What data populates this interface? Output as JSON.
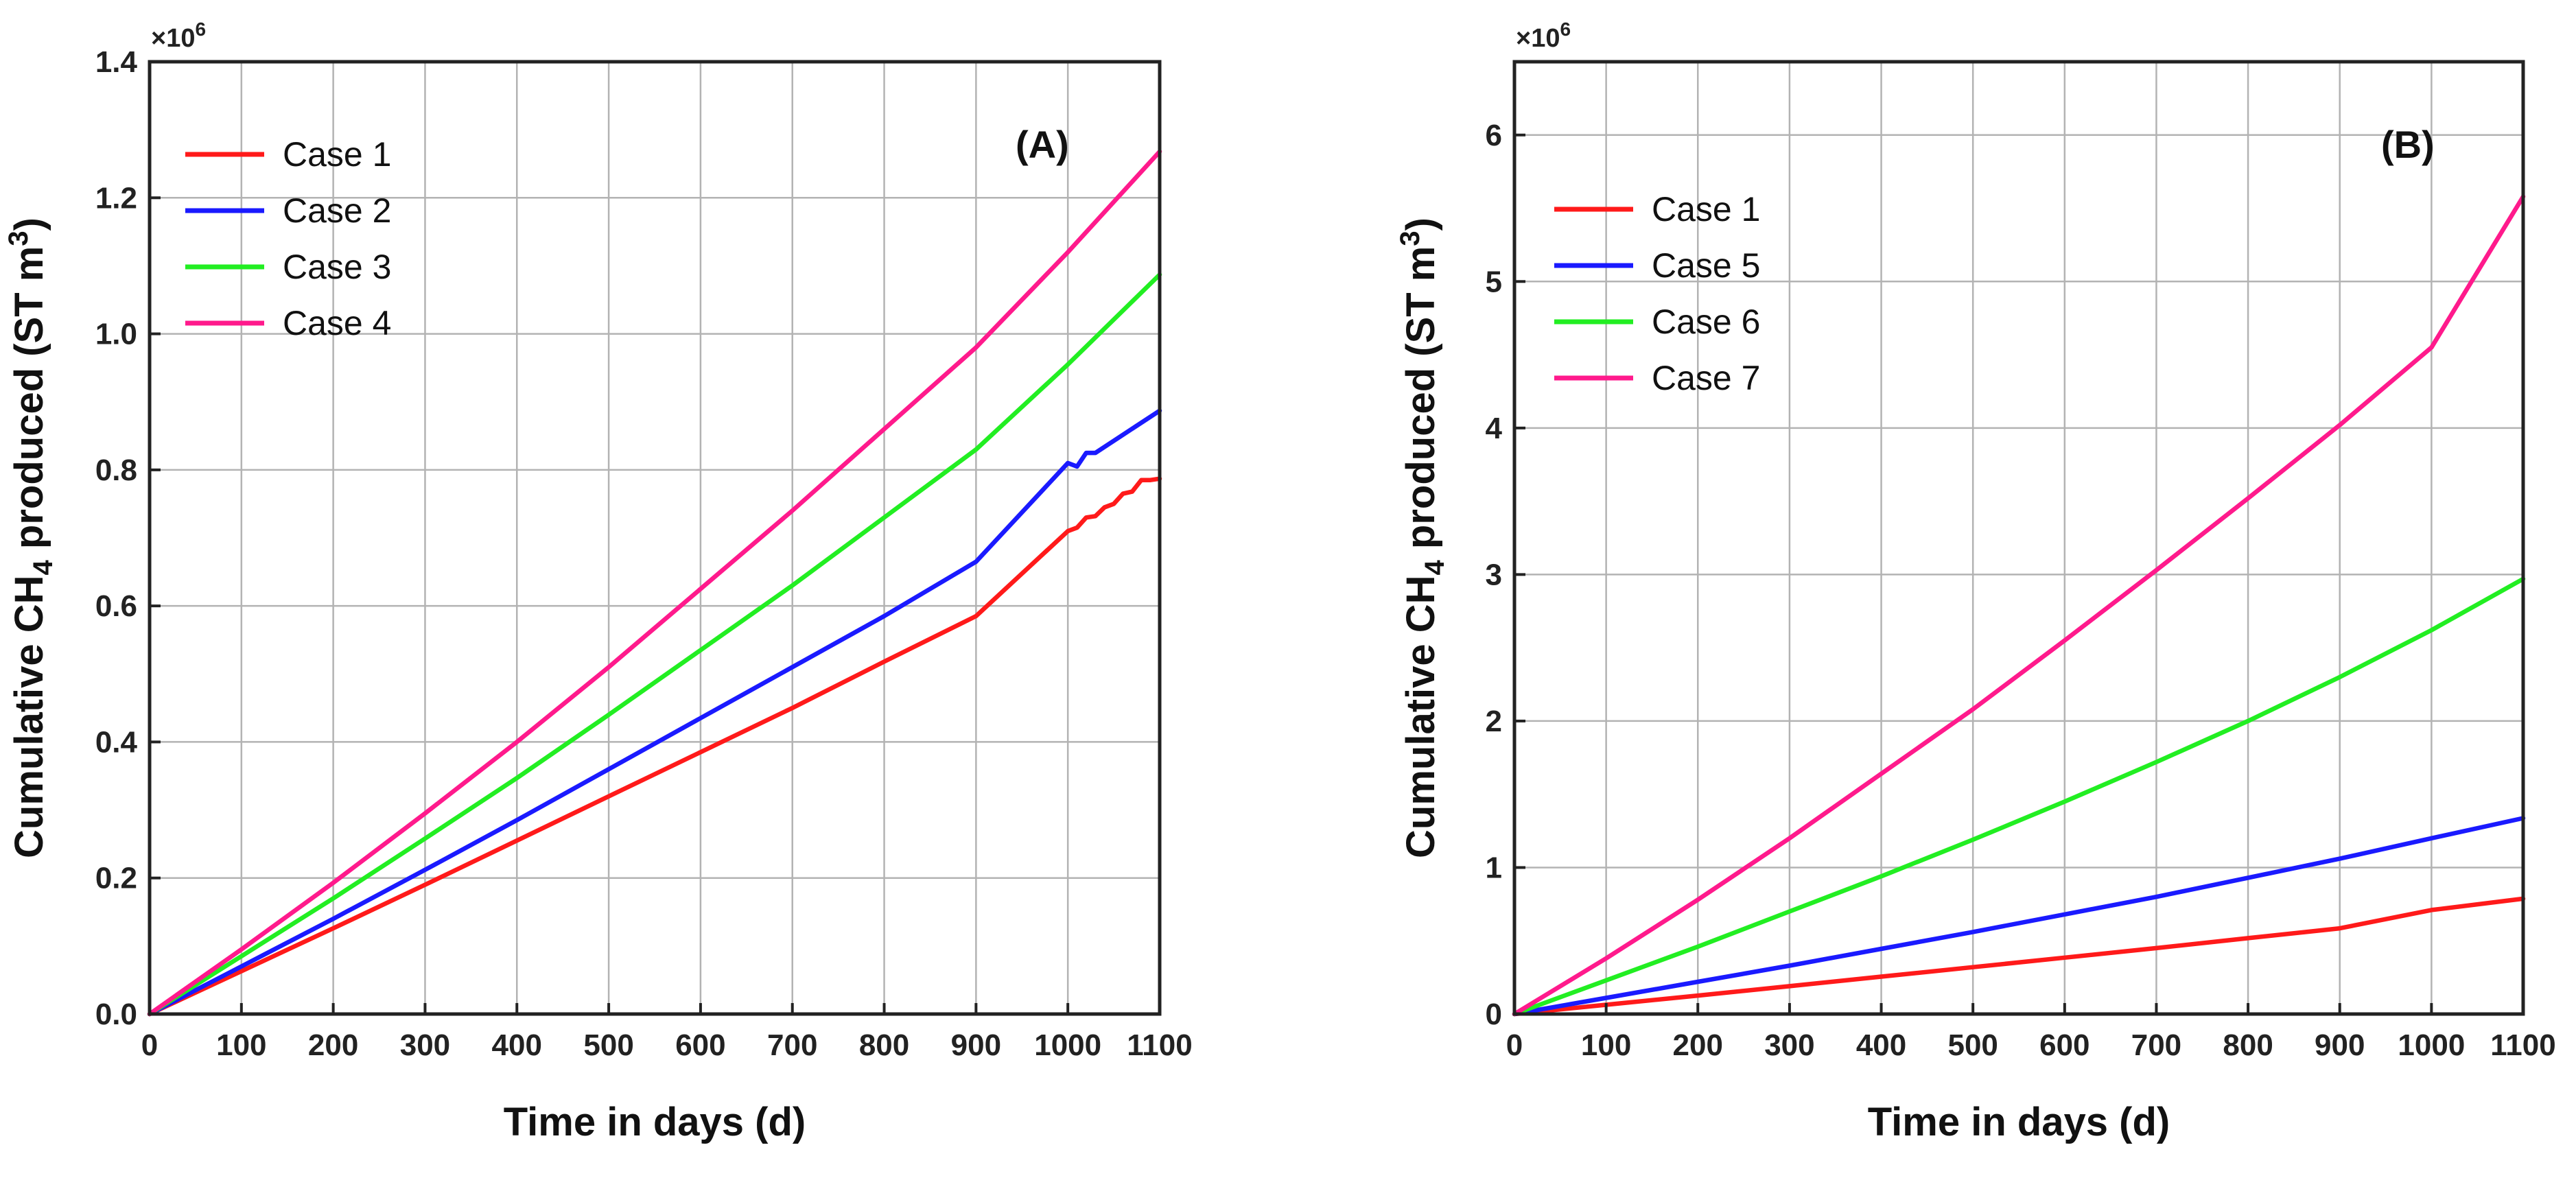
{
  "chart_data": [
    {
      "type": "line",
      "panel_label": "(A)",
      "xlabel": "Time in days (d)",
      "ylabel": "Cumulative CH4 produced (ST m3)",
      "ylabel_parts": {
        "a": "Cumulative CH",
        "sub": "4",
        "b": " produced (ST m",
        "sup": "3",
        "c": ")"
      },
      "y_multiplier": {
        "base": "×10",
        "exp": "6"
      },
      "xlim": [
        0,
        1100
      ],
      "ylim": [
        0,
        1.4
      ],
      "xticks": [
        0,
        100,
        200,
        300,
        400,
        500,
        600,
        700,
        800,
        900,
        1000,
        1100
      ],
      "yticks": [
        "0.0",
        "0.2",
        "0.4",
        "0.6",
        "0.8",
        "1.0",
        "1.2",
        "1.4"
      ],
      "grid": true,
      "legend_position": "top-left",
      "series": [
        {
          "name": "Case 1",
          "color": "#ff1a1a",
          "x": [
            0,
            100,
            200,
            300,
            400,
            500,
            600,
            700,
            800,
            900,
            1000,
            1010,
            1020,
            1030,
            1040,
            1050,
            1060,
            1070,
            1080,
            1090,
            1100
          ],
          "y": [
            0,
            0.063,
            0.126,
            0.19,
            0.255,
            0.32,
            0.385,
            0.45,
            0.518,
            0.585,
            0.71,
            0.715,
            0.73,
            0.732,
            0.745,
            0.75,
            0.765,
            0.768,
            0.785,
            0.785,
            0.787
          ]
        },
        {
          "name": "Case 2",
          "color": "#1a1aff",
          "x": [
            0,
            100,
            200,
            300,
            400,
            500,
            600,
            700,
            800,
            900,
            1000,
            1010,
            1020,
            1030,
            1100
          ],
          "y": [
            0,
            0.07,
            0.14,
            0.212,
            0.285,
            0.36,
            0.435,
            0.51,
            0.585,
            0.665,
            0.81,
            0.805,
            0.825,
            0.825,
            0.887
          ]
        },
        {
          "name": "Case 3",
          "color": "#22ee22",
          "x": [
            0,
            100,
            200,
            300,
            400,
            500,
            600,
            700,
            800,
            900,
            1000,
            1100
          ],
          "y": [
            0,
            0.085,
            0.17,
            0.258,
            0.347,
            0.44,
            0.535,
            0.63,
            0.73,
            0.83,
            0.955,
            1.087
          ]
        },
        {
          "name": "Case 4",
          "color": "#ff1a8c",
          "x": [
            0,
            100,
            200,
            300,
            400,
            500,
            600,
            700,
            800,
            900,
            1000,
            1100
          ],
          "y": [
            0,
            0.095,
            0.193,
            0.295,
            0.4,
            0.51,
            0.625,
            0.74,
            0.86,
            0.98,
            1.12,
            1.268
          ]
        }
      ]
    },
    {
      "type": "line",
      "panel_label": "(B)",
      "xlabel": "Time in days (d)",
      "ylabel": "Cumulative CH4 produced (ST m3)",
      "ylabel_parts": {
        "a": "Cumulative CH",
        "sub": "4",
        "b": " produced (ST m",
        "sup": "3",
        "c": ")"
      },
      "y_multiplier": {
        "base": "×10",
        "exp": "6"
      },
      "xlim": [
        0,
        1100
      ],
      "ylim": [
        0,
        6.5
      ],
      "xticks": [
        0,
        100,
        200,
        300,
        400,
        500,
        600,
        700,
        800,
        900,
        1000,
        1100
      ],
      "yticks": [
        "0",
        "1",
        "2",
        "3",
        "4",
        "5",
        "6"
      ],
      "grid": true,
      "legend_position": "top-left",
      "series": [
        {
          "name": "Case 1",
          "color": "#ff1a1a",
          "x": [
            0,
            100,
            200,
            300,
            400,
            500,
            600,
            700,
            800,
            900,
            1000,
            1100
          ],
          "y": [
            0,
            0.063,
            0.126,
            0.19,
            0.255,
            0.32,
            0.385,
            0.45,
            0.518,
            0.585,
            0.71,
            0.787
          ]
        },
        {
          "name": "Case 5",
          "color": "#1a1aff",
          "x": [
            0,
            100,
            200,
            300,
            400,
            500,
            600,
            700,
            800,
            900,
            1000,
            1100
          ],
          "y": [
            0,
            0.11,
            0.22,
            0.33,
            0.445,
            0.56,
            0.68,
            0.8,
            0.93,
            1.06,
            1.2,
            1.337
          ]
        },
        {
          "name": "Case 6",
          "color": "#22ee22",
          "x": [
            0,
            100,
            200,
            300,
            400,
            500,
            600,
            700,
            800,
            900,
            1000,
            1100
          ],
          "y": [
            0,
            0.23,
            0.46,
            0.7,
            0.94,
            1.19,
            1.45,
            1.72,
            2.0,
            2.3,
            2.62,
            2.97
          ]
        },
        {
          "name": "Case 7",
          "color": "#ff1a8c",
          "x": [
            0,
            100,
            200,
            300,
            400,
            500,
            600,
            700,
            800,
            900,
            1000,
            1100
          ],
          "y": [
            0,
            0.38,
            0.78,
            1.2,
            1.64,
            2.08,
            2.55,
            3.03,
            3.52,
            4.02,
            4.55,
            5.58
          ]
        }
      ]
    }
  ]
}
